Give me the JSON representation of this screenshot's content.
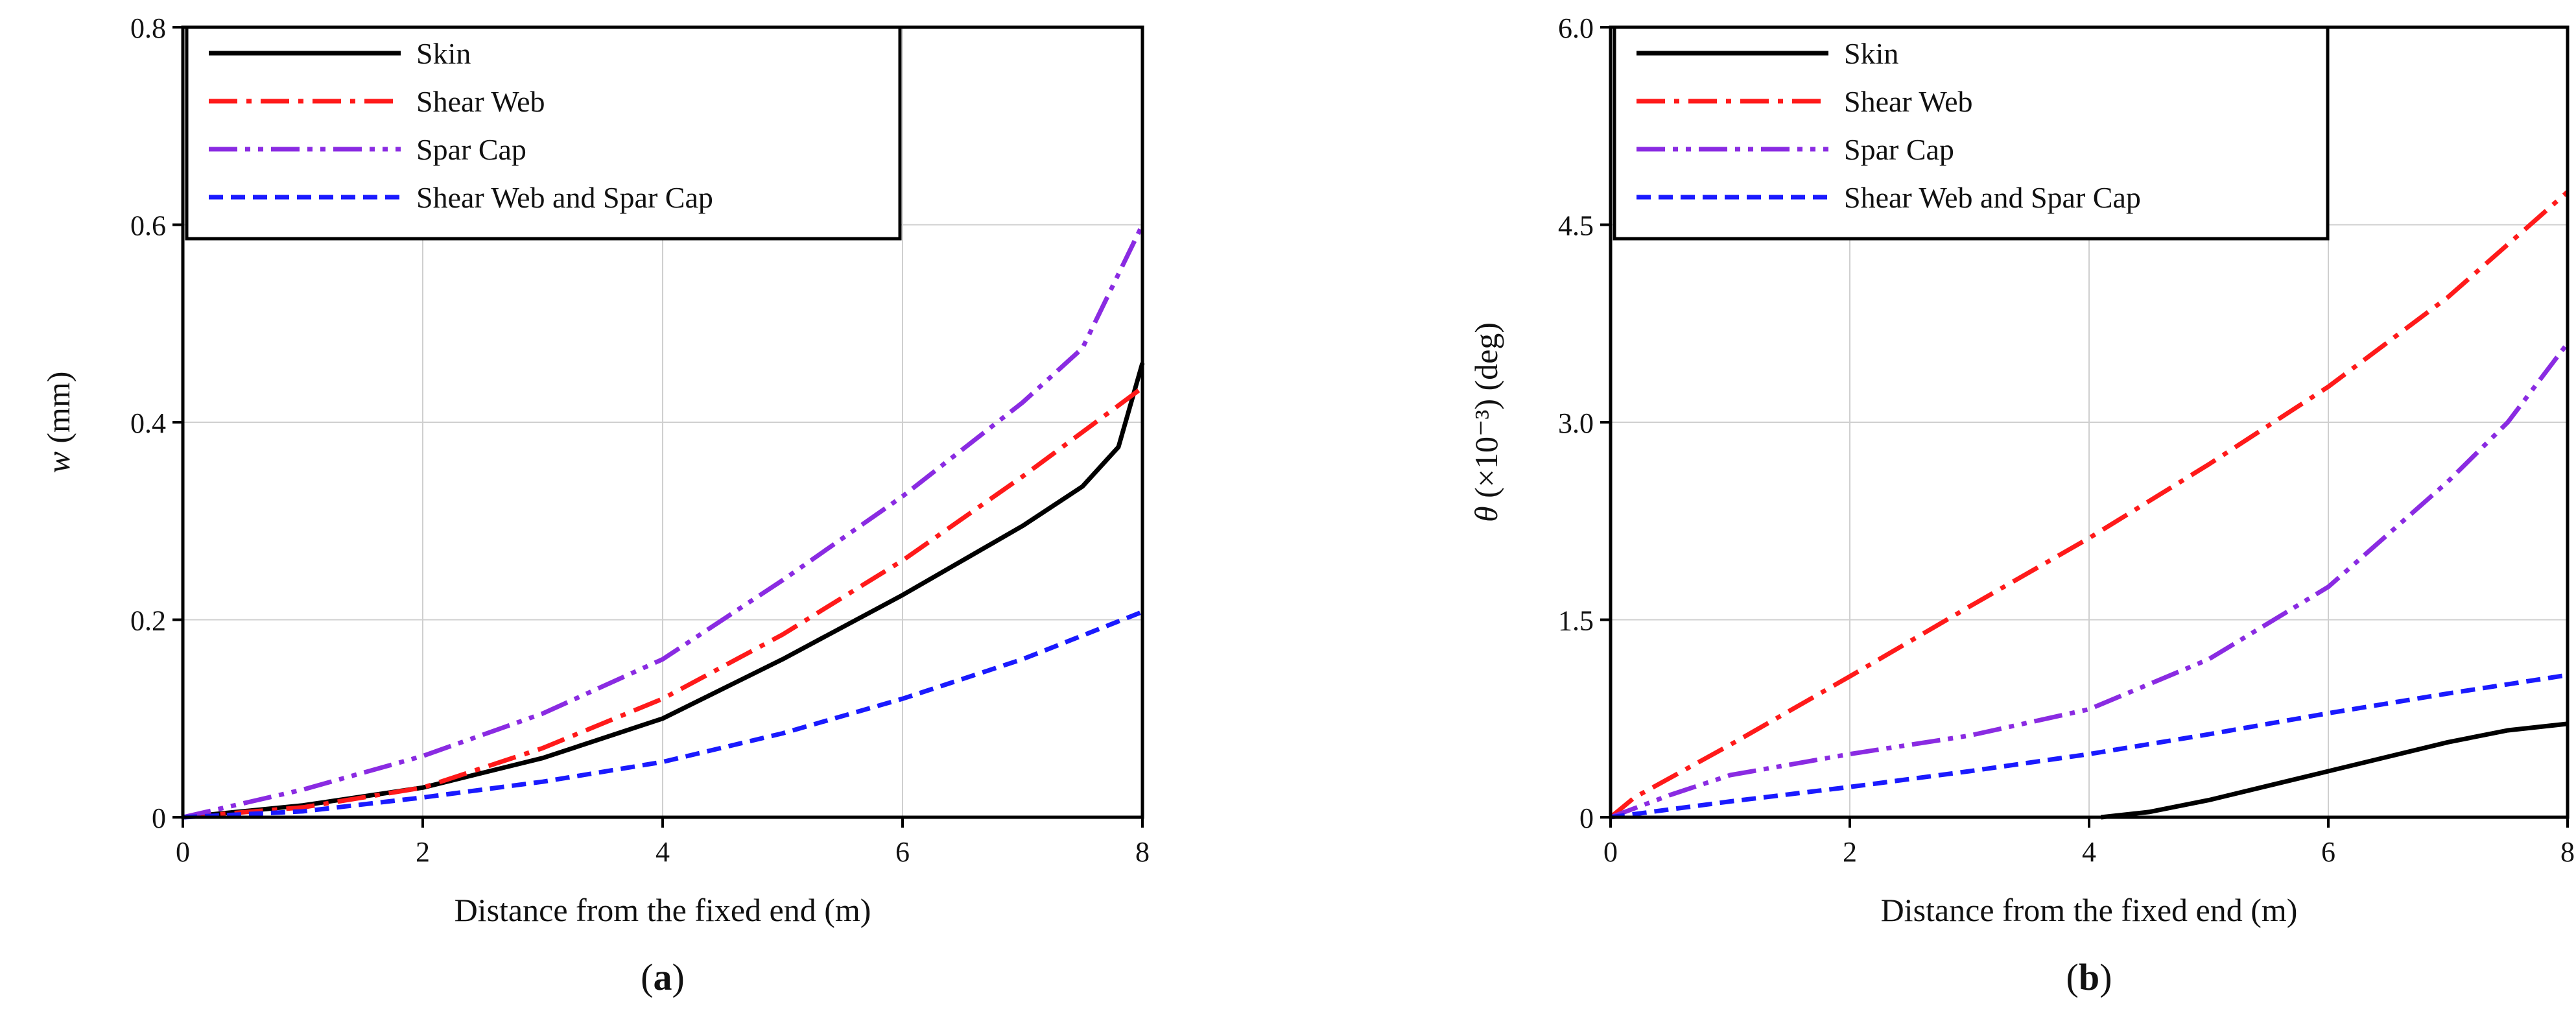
{
  "chart_data": [
    {
      "type": "line",
      "panel_label": "(a)",
      "panel_letter": "a",
      "xlabel": "Distance from the fixed end (m)",
      "ylabel_var": "w",
      "ylabel_unit": " (mm)",
      "xlim": [
        0,
        8
      ],
      "ylim": [
        0,
        0.8
      ],
      "xticks": [
        0,
        2,
        4,
        6,
        8
      ],
      "xtick_labels": [
        "0",
        "2",
        "4",
        "6",
        "8"
      ],
      "yticks": [
        0,
        0.2,
        0.4,
        0.6,
        0.8
      ],
      "ytick_labels": [
        "0",
        "0.2",
        "0.4",
        "0.6",
        "0.8"
      ],
      "grid": true,
      "legend_position": "top-left",
      "series": [
        {
          "name": "Skin",
          "color": "#000000",
          "style": "solid",
          "x": [
            0,
            1,
            2,
            3,
            4,
            5,
            6,
            7,
            7.5,
            7.8,
            8
          ],
          "y": [
            0,
            0.012,
            0.03,
            0.06,
            0.1,
            0.16,
            0.225,
            0.295,
            0.335,
            0.375,
            0.46
          ]
        },
        {
          "name": "Shear Web",
          "color": "#ff1a1a",
          "style": "dashdot",
          "x": [
            0,
            1,
            2,
            3,
            4,
            5,
            6,
            7,
            8
          ],
          "y": [
            0,
            0.01,
            0.03,
            0.07,
            0.12,
            0.185,
            0.26,
            0.345,
            0.435
          ]
        },
        {
          "name": "Spar Cap",
          "color": "#8a2be2",
          "style": "dashdotdot",
          "x": [
            0,
            1,
            2,
            3,
            4,
            5,
            6,
            7,
            7.5,
            8
          ],
          "y": [
            0,
            0.028,
            0.062,
            0.105,
            0.16,
            0.24,
            0.325,
            0.42,
            0.475,
            0.6
          ]
        },
        {
          "name": "Shear Web and Spar Cap",
          "color": "#1a1aff",
          "style": "dashed",
          "x": [
            0,
            1,
            2,
            3,
            4,
            5,
            6,
            7,
            8
          ],
          "y": [
            0,
            0.006,
            0.02,
            0.036,
            0.056,
            0.085,
            0.12,
            0.16,
            0.208
          ]
        }
      ]
    },
    {
      "type": "line",
      "panel_label": "(b)",
      "panel_letter": "b",
      "xlabel": "Distance from the fixed end (m)",
      "ylabel_var": "θ",
      "ylabel_unit": " (×10⁻³) (deg)",
      "xlim": [
        0,
        8
      ],
      "ylim": [
        0,
        6
      ],
      "xticks": [
        0,
        2,
        4,
        6,
        8
      ],
      "xtick_labels": [
        "0",
        "2",
        "4",
        "6",
        "8"
      ],
      "yticks": [
        0,
        1.5,
        3,
        4.5,
        6
      ],
      "ytick_labels": [
        "0",
        "1.5",
        "3.0",
        "4.5",
        "6.0"
      ],
      "grid": true,
      "legend_position": "top-left",
      "series": [
        {
          "name": "Skin",
          "color": "#000000",
          "style": "solid",
          "x": [
            4.1,
            4.5,
            5,
            5.5,
            6,
            6.5,
            7,
            7.5,
            8
          ],
          "y": [
            0,
            0.04,
            0.13,
            0.24,
            0.35,
            0.46,
            0.57,
            0.66,
            0.71
          ]
        },
        {
          "name": "Shear Web",
          "color": "#ff1a1a",
          "style": "dashdot",
          "x": [
            0,
            0.2,
            1,
            2,
            3,
            4,
            5,
            6,
            7,
            8
          ],
          "y": [
            0,
            0.15,
            0.55,
            1.07,
            1.6,
            2.12,
            2.68,
            3.27,
            3.95,
            4.75
          ]
        },
        {
          "name": "Spar Cap",
          "color": "#8a2be2",
          "style": "dashdotdot",
          "x": [
            0,
            0.5,
            1,
            2,
            3,
            4,
            5,
            6,
            7,
            7.5,
            8
          ],
          "y": [
            0,
            0.17,
            0.32,
            0.48,
            0.62,
            0.82,
            1.2,
            1.75,
            2.55,
            3.0,
            3.6
          ]
        },
        {
          "name": "Shear Web and Spar Cap",
          "color": "#1a1aff",
          "style": "dashed",
          "x": [
            0,
            1,
            2,
            3,
            4,
            5,
            6,
            7,
            8
          ],
          "y": [
            0,
            0.12,
            0.23,
            0.35,
            0.48,
            0.63,
            0.79,
            0.94,
            1.08
          ]
        }
      ]
    }
  ]
}
